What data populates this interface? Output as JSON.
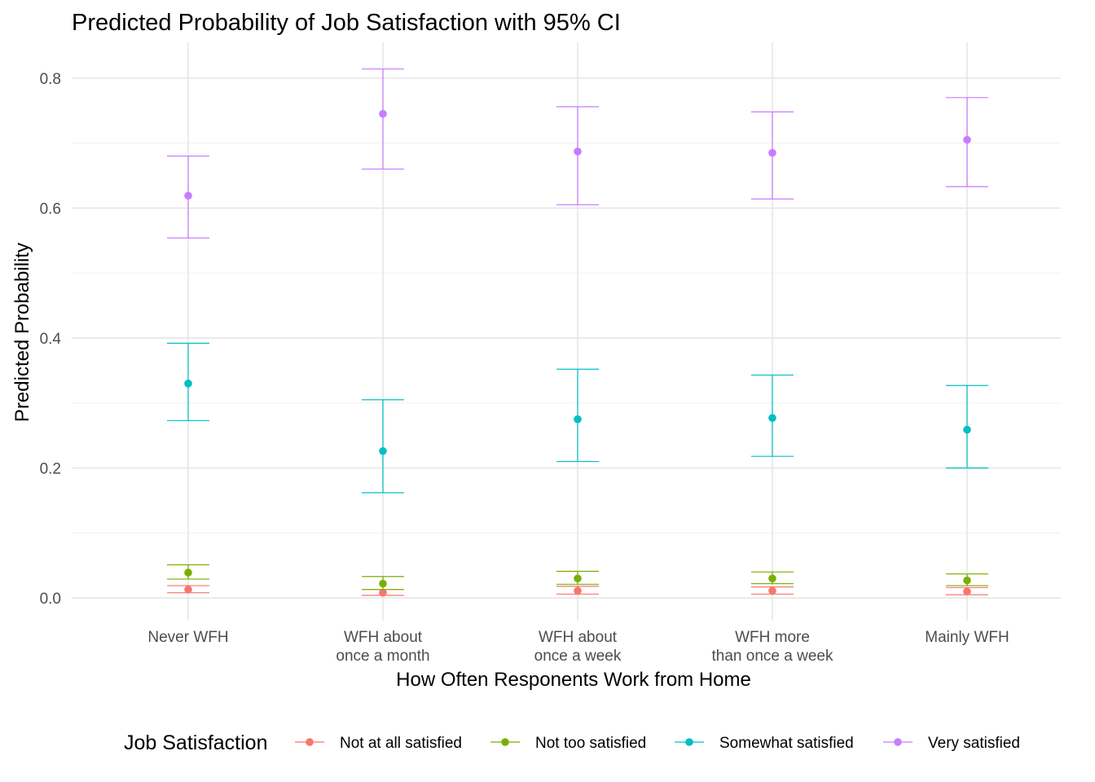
{
  "chart_data": {
    "type": "scatter",
    "title": "Predicted Probability of Job Satisfaction with 95% CI",
    "xlabel": "How Often Responents Work from Home",
    "ylabel": "Predicted Probability",
    "categories": [
      [
        "Never WFH"
      ],
      [
        "WFH about",
        "once a month"
      ],
      [
        "WFH about",
        "once a week"
      ],
      [
        "WFH more",
        "than once a week"
      ],
      [
        "Mainly WFH"
      ]
    ],
    "ylim": [
      -0.035,
      0.855
    ],
    "yticks": [
      0.0,
      0.2,
      0.4,
      0.6,
      0.8
    ],
    "ytick_labels": [
      "0.0",
      "0.2",
      "0.4",
      "0.6",
      "0.8"
    ],
    "grid": true,
    "error_bars": "95% CI",
    "legend": {
      "title": "Job Satisfaction",
      "position": "bottom"
    },
    "series": [
      {
        "name": "Not at all satisfied",
        "color": "#F8766D",
        "values": [
          0.013,
          0.008,
          0.011,
          0.011,
          0.01
        ],
        "lower": [
          0.008,
          0.004,
          0.006,
          0.006,
          0.005
        ],
        "upper": [
          0.019,
          0.013,
          0.018,
          0.017,
          0.016
        ]
      },
      {
        "name": "Not too satisfied",
        "color": "#7CAE00",
        "values": [
          0.039,
          0.022,
          0.03,
          0.03,
          0.027
        ],
        "lower": [
          0.029,
          0.013,
          0.021,
          0.022,
          0.019
        ],
        "upper": [
          0.051,
          0.033,
          0.041,
          0.04,
          0.037
        ]
      },
      {
        "name": "Somewhat satisfied",
        "color": "#00BFC4",
        "values": [
          0.33,
          0.226,
          0.275,
          0.277,
          0.259
        ],
        "lower": [
          0.273,
          0.162,
          0.21,
          0.218,
          0.2
        ],
        "upper": [
          0.392,
          0.305,
          0.352,
          0.343,
          0.327
        ]
      },
      {
        "name": "Very satisfied",
        "color": "#C77CFF",
        "values": [
          0.619,
          0.745,
          0.687,
          0.685,
          0.705
        ],
        "lower": [
          0.554,
          0.66,
          0.605,
          0.614,
          0.633
        ],
        "upper": [
          0.68,
          0.814,
          0.756,
          0.748,
          0.77
        ]
      }
    ]
  }
}
